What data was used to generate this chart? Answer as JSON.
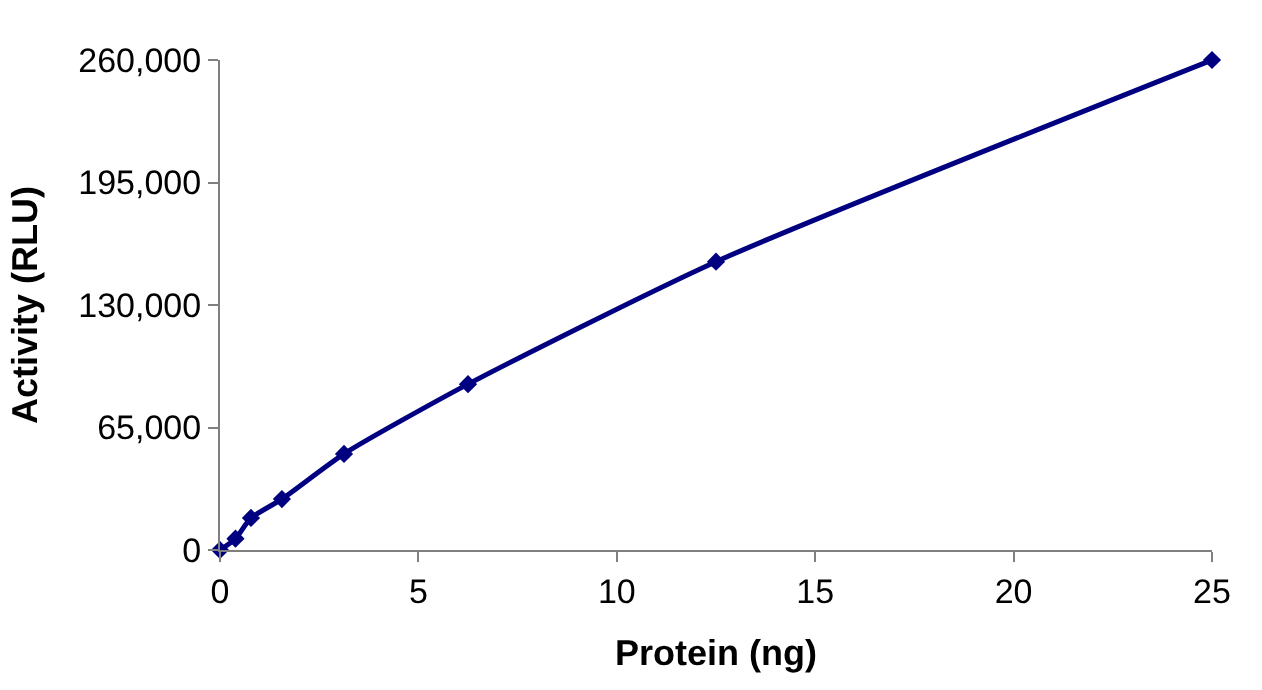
{
  "chart_data": {
    "type": "line",
    "xlabel": "Protein (ng)",
    "ylabel": "Activity (RLU)",
    "x": [
      0,
      0.39,
      0.78,
      1.56,
      3.125,
      6.25,
      12.5,
      25
    ],
    "series": [
      {
        "color": "#000080",
        "values": [
          0,
          6000,
          17000,
          27000,
          51000,
          88000,
          153000,
          260000
        ]
      }
    ],
    "xlim": [
      0,
      25
    ],
    "xticks": [
      0,
      5,
      10,
      15,
      20,
      25
    ],
    "ylim": [
      0,
      260000
    ],
    "yticks": [
      {
        "value": 0,
        "label": "0"
      },
      {
        "value": 65000,
        "label": "65,000"
      },
      {
        "value": 130000,
        "label": "130,000"
      },
      {
        "value": 195000,
        "label": "195,000"
      },
      {
        "value": 260000,
        "label": "260,000"
      }
    ],
    "marker": "diamond",
    "line_style": "solid"
  }
}
